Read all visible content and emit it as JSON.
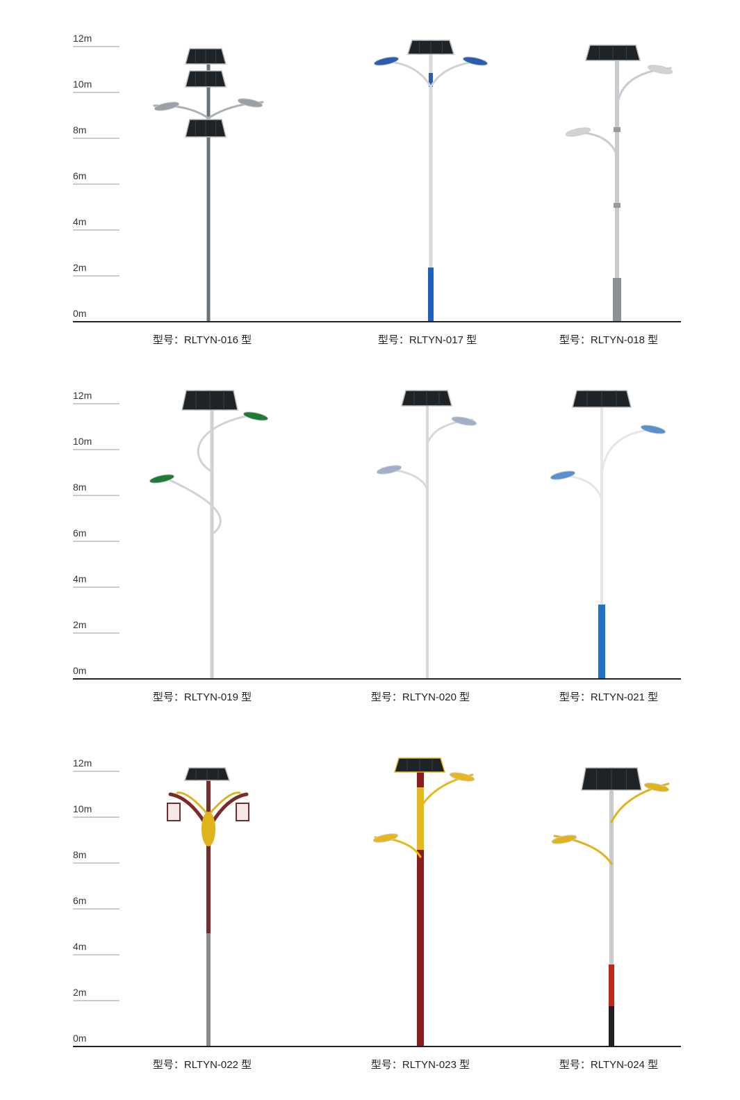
{
  "axis": {
    "ticks": [
      "12m",
      "10m",
      "8m",
      "6m",
      "4m",
      "2m",
      "0m"
    ]
  },
  "rows": [
    {
      "models": [
        {
          "label": "型号：RLTYN-016 型",
          "pole_color": "#6b7378",
          "head_color": "#9aa0a5"
        },
        {
          "label": "型号：RLTYN-017 型",
          "pole_color": "#d8dadc",
          "head_color": "#2a5fb0",
          "base_color": "#1f5fbf"
        },
        {
          "label": "型号：RLTYN-018 型",
          "pole_color": "#c9cccf",
          "head_color": "#d0d3d6",
          "base_color": "#8d9195"
        }
      ]
    },
    {
      "models": [
        {
          "label": "型号：RLTYN-019 型",
          "pole_color": "#cfd2d5",
          "head_color": "#1f7a35"
        },
        {
          "label": "型号：RLTYN-020 型",
          "pole_color": "#d6d8da",
          "head_color": "#9fb0c8"
        },
        {
          "label": "型号：RLTYN-021 型",
          "pole_color": "#e4e6e8",
          "head_color": "#5c8fd0",
          "base_color": "#1f73c4"
        }
      ]
    },
    {
      "models": [
        {
          "label": "型号：RLTYN-022 型",
          "pole_color": "#7a2a2a",
          "head_color": "#e0b21c",
          "base_color": "#8a8a8a"
        },
        {
          "label": "型号：RLTYN-023 型",
          "pole_color": "#8c1d1d",
          "head_color": "#e6b81e"
        },
        {
          "label": "型号：RLTYN-024 型",
          "pole_color": "#c8cbce",
          "head_color": "#e0b21c",
          "base_color": "#222"
        }
      ]
    }
  ]
}
